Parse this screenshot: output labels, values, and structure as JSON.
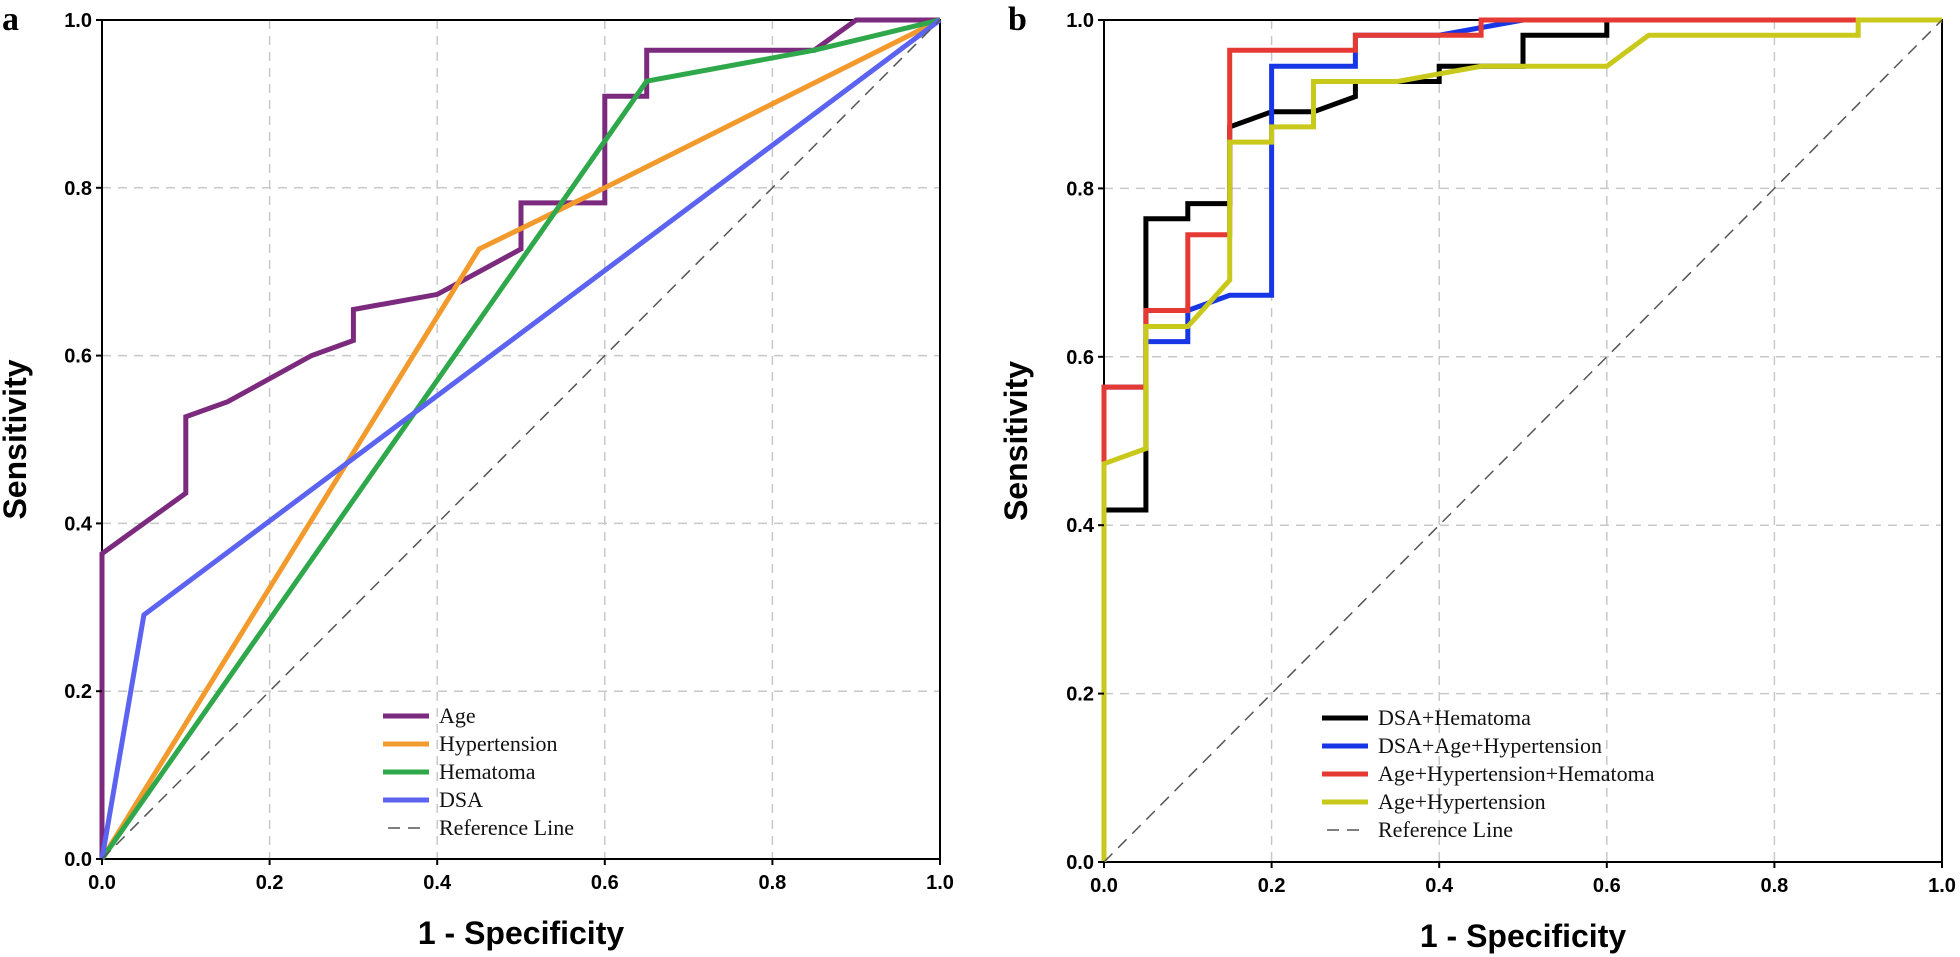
{
  "chart_data": [
    {
      "panel": "a",
      "type": "line",
      "title": "",
      "xlabel": "1 - Specificity",
      "ylabel": "Sensitivity",
      "xlim": [
        0,
        1
      ],
      "ylim": [
        0,
        1
      ],
      "xticks": [
        "0.0",
        "0.2",
        "0.4",
        "0.6",
        "0.8",
        "1.0"
      ],
      "yticks": [
        "0.0",
        "0.2",
        "0.4",
        "0.6",
        "0.8",
        "1.0"
      ],
      "grid": true,
      "legend_position": "bottom-center",
      "series": [
        {
          "name": "Age",
          "color": "#7b2a7d",
          "x": [
            0,
            0,
            0.1,
            0.1,
            0.15,
            0.25,
            0.3,
            0.3,
            0.4,
            0.5,
            0.5,
            0.55,
            0.6,
            0.6,
            0.65,
            0.65,
            0.7,
            0.85,
            0.9,
            1.0
          ],
          "y": [
            0,
            0.364,
            0.436,
            0.527,
            0.545,
            0.6,
            0.618,
            0.655,
            0.673,
            0.727,
            0.782,
            0.782,
            0.782,
            0.909,
            0.909,
            0.964,
            0.964,
            0.964,
            1.0,
            1.0
          ]
        },
        {
          "name": "Hypertension",
          "color": "#f39a2c",
          "x": [
            0,
            0.45,
            0.6,
            1.0
          ],
          "y": [
            0,
            0.727,
            0.8,
            1.0
          ]
        },
        {
          "name": "Hematoma",
          "color": "#2ea84a",
          "x": [
            0,
            0.65,
            0.85,
            1.0
          ],
          "y": [
            0,
            0.927,
            0.964,
            1.0
          ]
        },
        {
          "name": "DSA",
          "color": "#5b63f0",
          "x": [
            0,
            0.05,
            1.0
          ],
          "y": [
            0,
            0.291,
            1.0
          ]
        },
        {
          "name": "Reference Line",
          "color": "#555555",
          "dashed": true,
          "x": [
            0,
            1
          ],
          "y": [
            0,
            1
          ]
        }
      ]
    },
    {
      "panel": "b",
      "type": "line",
      "title": "",
      "xlabel": "1 - Specificity",
      "ylabel": "Sensitivity",
      "xlim": [
        0,
        1
      ],
      "ylim": [
        0,
        1
      ],
      "xticks": [
        "0.0",
        "0.2",
        "0.4",
        "0.6",
        "0.8",
        "1.0"
      ],
      "yticks": [
        "0.0",
        "0.2",
        "0.4",
        "0.6",
        "0.8",
        "1.0"
      ],
      "grid": true,
      "legend_position": "bottom-center",
      "series": [
        {
          "name": "DSA+Hematoma",
          "color": "#000000",
          "x": [
            0,
            0,
            0.05,
            0.05,
            0.1,
            0.1,
            0.15,
            0.15,
            0.2,
            0.25,
            0.3,
            0.3,
            0.4,
            0.4,
            0.5,
            0.5,
            0.6,
            0.6,
            1.0
          ],
          "y": [
            0,
            0.418,
            0.418,
            0.764,
            0.764,
            0.782,
            0.782,
            0.873,
            0.891,
            0.891,
            0.909,
            0.927,
            0.927,
            0.945,
            0.945,
            0.982,
            0.982,
            1.0,
            1.0
          ]
        },
        {
          "name": "DSA+Age+Hypertension",
          "color": "#1736e6",
          "x": [
            0,
            0,
            0.05,
            0.05,
            0.1,
            0.1,
            0.15,
            0.2,
            0.2,
            0.3,
            0.3,
            0.4,
            0.5,
            1.0
          ],
          "y": [
            0,
            0.564,
            0.564,
            0.618,
            0.618,
            0.655,
            0.673,
            0.673,
            0.945,
            0.945,
            0.982,
            0.982,
            1.0,
            1.0
          ]
        },
        {
          "name": "Age+Hypertension+Hematoma",
          "color": "#e53a34",
          "x": [
            0,
            0,
            0.05,
            0.05,
            0.1,
            0.1,
            0.15,
            0.15,
            0.3,
            0.3,
            0.45,
            0.45,
            1.0
          ],
          "y": [
            0,
            0.564,
            0.564,
            0.655,
            0.655,
            0.745,
            0.745,
            0.964,
            0.964,
            0.982,
            0.982,
            1.0,
            1.0
          ]
        },
        {
          "name": "Age+Hypertension",
          "color": "#c9c91c",
          "x": [
            0,
            0,
            0.05,
            0.05,
            0.1,
            0.15,
            0.15,
            0.2,
            0.2,
            0.25,
            0.25,
            0.35,
            0.45,
            0.6,
            0.65,
            0.9,
            0.9,
            1.0
          ],
          "y": [
            0,
            0.473,
            0.491,
            0.636,
            0.636,
            0.691,
            0.855,
            0.855,
            0.873,
            0.873,
            0.927,
            0.927,
            0.945,
            0.945,
            0.982,
            0.982,
            1.0,
            1.0
          ]
        },
        {
          "name": "Reference  Line",
          "color": "#555555",
          "dashed": true,
          "x": [
            0,
            1
          ],
          "y": [
            0,
            1
          ]
        }
      ]
    }
  ]
}
